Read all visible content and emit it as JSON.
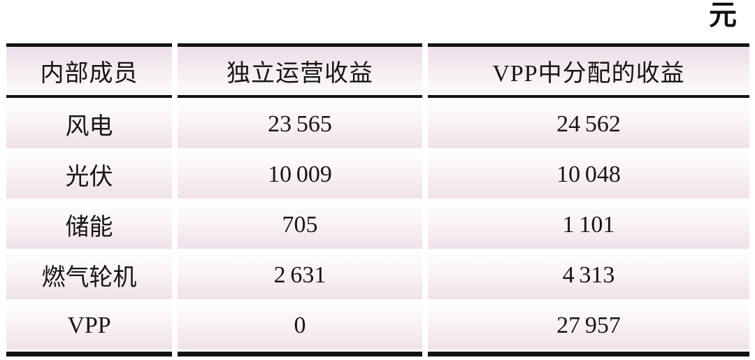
{
  "unit_label": "元",
  "colors": {
    "border_black": "#121212",
    "header_pink_top": "#ecdde8",
    "cell_pink_bottom": "#f0e1ea",
    "background": "#ffffff"
  },
  "table": {
    "columns": [
      "内部成员",
      "独立运营收益",
      "VPP中分配的收益"
    ],
    "rows": [
      {
        "member": "风电",
        "independent": "23 565",
        "vpp_allocated": "24 562"
      },
      {
        "member": "光伏",
        "independent": "10 009",
        "vpp_allocated": "10 048"
      },
      {
        "member": "储能",
        "independent": "705",
        "vpp_allocated": "1 101"
      },
      {
        "member": "燃气轮机",
        "independent": "2 631",
        "vpp_allocated": "4 313"
      },
      {
        "member": "VPP",
        "independent": "0",
        "vpp_allocated": "27 957"
      }
    ]
  }
}
